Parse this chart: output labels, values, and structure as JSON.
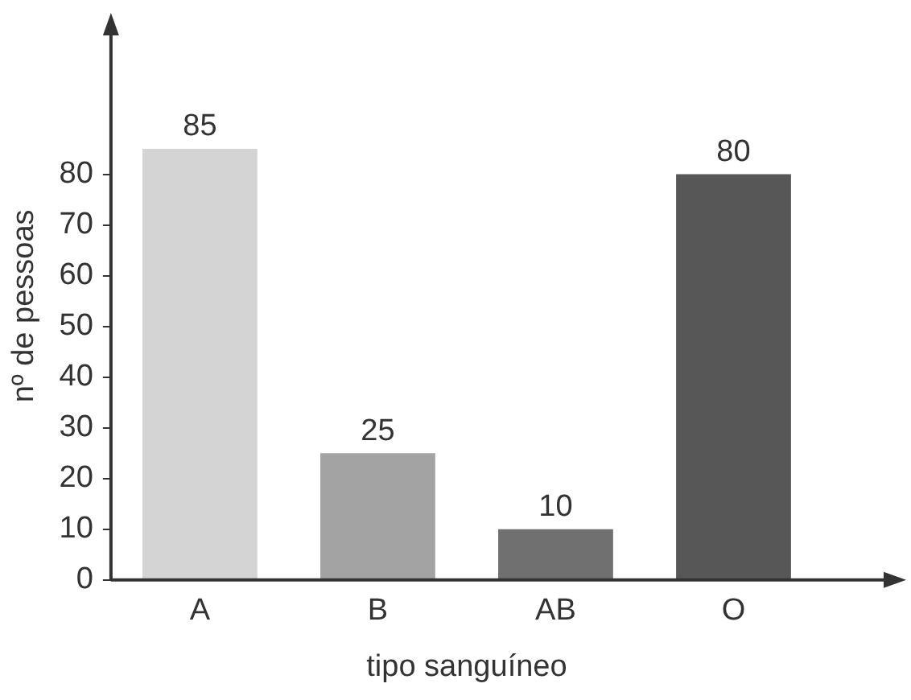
{
  "chart_data": {
    "type": "bar",
    "xlabel": "tipo sanguíneo",
    "ylabel": "nº de pessoas",
    "categories": [
      "A",
      "B",
      "AB",
      "O"
    ],
    "values": [
      85,
      25,
      10,
      80
    ],
    "colors": [
      "#d4d4d4",
      "#a3a3a3",
      "#707070",
      "#575757"
    ],
    "ylim": [
      0,
      108
    ],
    "yticks": [
      0,
      10,
      20,
      30,
      40,
      50,
      60,
      70,
      80
    ],
    "grid": false,
    "data_labels": true
  }
}
